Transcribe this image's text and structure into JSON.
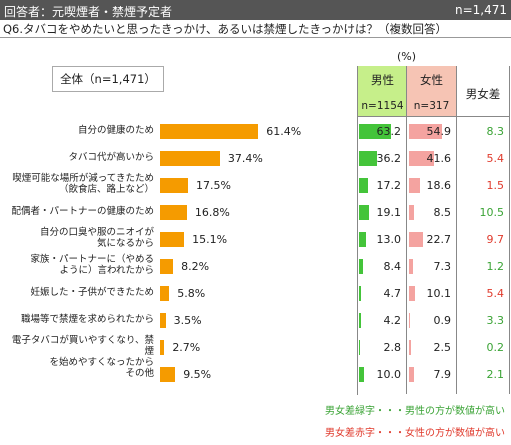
{
  "header": {
    "respondent": "回答者：元喫煙者・禁煙予定者",
    "n_total": "n=1,471"
  },
  "question": "Q6.タバコをやめたいと思ったきっかけ、あるいは禁煙したきっかけは？（複数回答）",
  "unit": "(%)",
  "legend": "全体（n=1,471）",
  "table": {
    "male_label": "男性",
    "male_n": "n=1154",
    "female_label": "女性",
    "female_n": "n=317",
    "diff_label": "男女差"
  },
  "notes": {
    "green": "男女差緑字・・・男性の方が数値が高い",
    "red": "男女差赤字・・・女性の方が数値が高い"
  },
  "colors": {
    "bar": "#f59b00",
    "male": "#44c43a",
    "female": "#f4a3a0",
    "diff_positive": "#3aa335",
    "diff_negative": "#e03a2c"
  },
  "chart_data": {
    "type": "bar",
    "categories": [
      "自分の健康のため",
      "タバコ代が高いから",
      "喫煙可能な場所が減ってきたため\n（飲食店、路上など）",
      "配偶者・パートナーの健康のため",
      "自分の口臭や服のニオイが\n気になるから",
      "家族・パートナーに（やめる\nように）言われたから",
      "妊娠した・子供ができたため",
      "職場等で禁煙を求められたから",
      "電子タバコが買いやすくなり、禁煙\nを始めやすくなったから",
      "その他"
    ],
    "series": [
      {
        "name": "全体（n=1,471）",
        "values": [
          61.4,
          37.4,
          17.5,
          16.8,
          15.1,
          8.2,
          5.8,
          3.5,
          2.7,
          9.5
        ]
      },
      {
        "name": "男性",
        "values": [
          63.2,
          36.2,
          17.2,
          19.1,
          13.0,
          8.4,
          4.7,
          4.2,
          2.8,
          10.0
        ]
      },
      {
        "name": "女性",
        "values": [
          54.9,
          41.6,
          18.6,
          8.5,
          22.7,
          7.3,
          10.1,
          0.9,
          2.5,
          7.9
        ]
      },
      {
        "name": "男女差",
        "values": [
          8.3,
          5.4,
          1.5,
          10.5,
          9.7,
          1.2,
          5.4,
          3.3,
          0.2,
          2.1
        ]
      }
    ],
    "diff_direction": [
      "male",
      "female",
      "female",
      "male",
      "female",
      "male",
      "female",
      "male",
      "male",
      "male"
    ],
    "overall_labels": [
      "61.4%",
      "37.4%",
      "17.5%",
      "16.8%",
      "15.1%",
      "8.2%",
      "5.8%",
      "3.5%",
      "2.7%",
      "9.5%"
    ],
    "male_labels": [
      "63.2",
      "36.2",
      "17.2",
      "19.1",
      "13.0",
      "8.4",
      "4.7",
      "4.2",
      "2.8",
      "10.0"
    ],
    "female_labels": [
      "54.9",
      "41.6",
      "18.6",
      "8.5",
      "22.7",
      "7.3",
      "10.1",
      "0.9",
      "2.5",
      "7.9"
    ],
    "diff_labels": [
      "8.3",
      "5.4",
      "1.5",
      "10.5",
      "9.7",
      "1.2",
      "5.4",
      "3.3",
      "0.2",
      "2.1"
    ]
  }
}
